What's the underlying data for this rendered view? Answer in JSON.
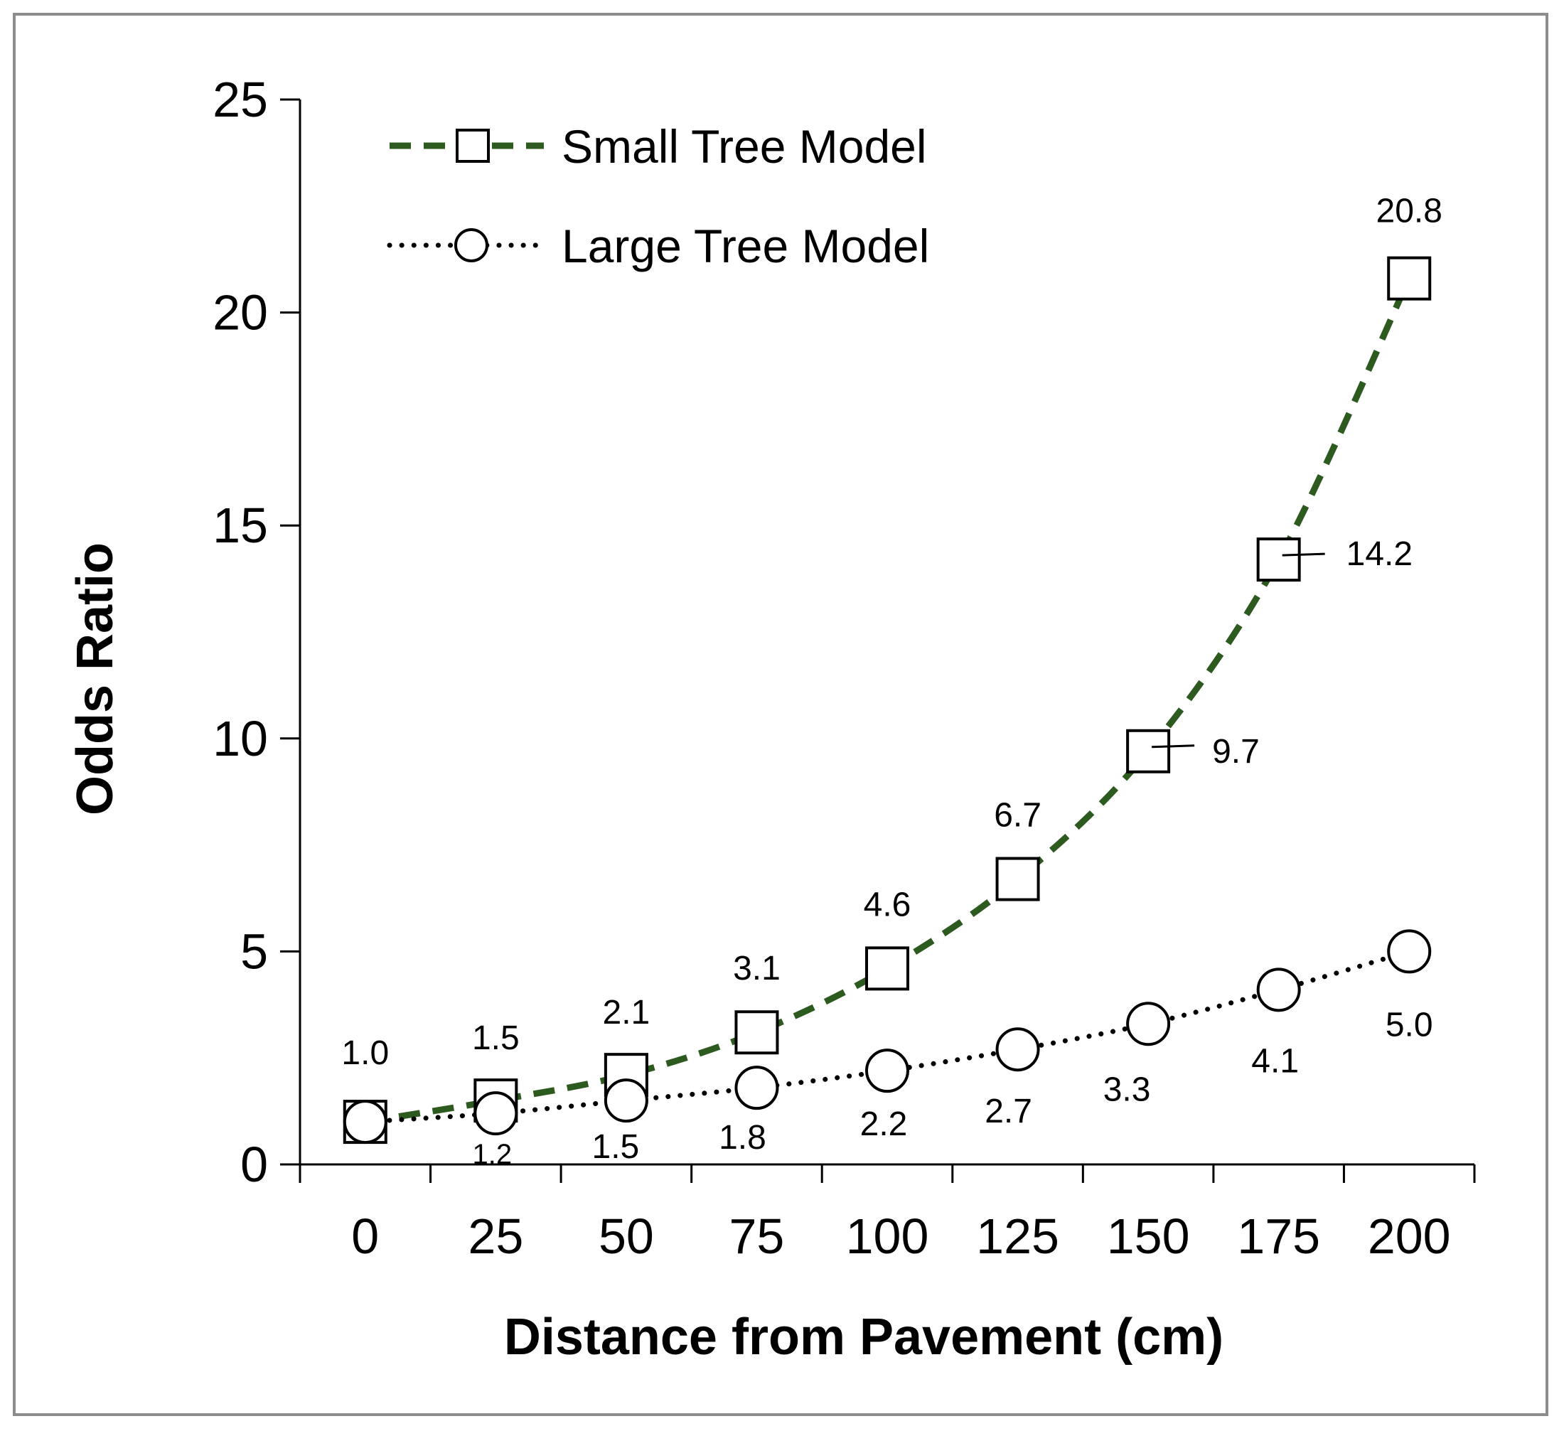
{
  "chart_data": {
    "type": "line",
    "xlabel": "Distance from Pavement (cm)",
    "ylabel": "Odds Ratio",
    "x": [
      0,
      25,
      50,
      75,
      100,
      125,
      150,
      175,
      200
    ],
    "x_tick_labels": [
      "0",
      "25",
      "50",
      "75",
      "100",
      "125",
      "150",
      "175",
      "200"
    ],
    "y_tick_labels": [
      "0",
      "5",
      "10",
      "15",
      "20",
      "25"
    ],
    "ylim": [
      0,
      25
    ],
    "grid": false,
    "legend_position": "top-left",
    "series": [
      {
        "name": "Small Tree Model",
        "line_style": "dashed",
        "marker": "square",
        "color": "#2d5a1f",
        "values": [
          1.0,
          1.5,
          2.1,
          3.1,
          4.6,
          6.7,
          9.7,
          14.2,
          20.8
        ],
        "labels": [
          "1.0",
          "1.5",
          "2.1",
          "3.1",
          "4.6",
          "6.7",
          "9.7",
          "14.2",
          "20.8"
        ]
      },
      {
        "name": "Large Tree Model",
        "line_style": "dotted",
        "marker": "circle",
        "color": "#000000",
        "values": [
          1.0,
          1.2,
          1.5,
          1.8,
          2.2,
          2.7,
          3.3,
          4.1,
          5.0
        ],
        "labels": [
          "",
          "1.2",
          "1.5",
          "1.8",
          "2.2",
          "2.7",
          "3.3",
          "4.1",
          "5.0"
        ]
      }
    ]
  }
}
